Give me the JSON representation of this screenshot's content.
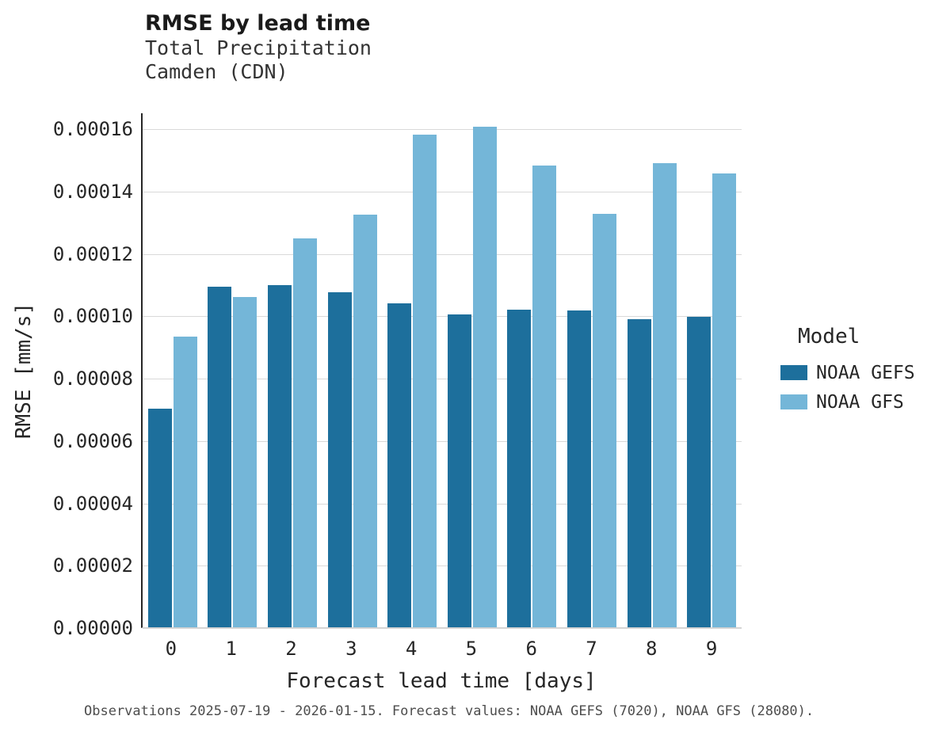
{
  "header": {
    "title": "RMSE by lead time",
    "subtitle1": "Total Precipitation",
    "subtitle2": "Camden (CDN)"
  },
  "chart_data": {
    "type": "bar",
    "title": "RMSE by lead time",
    "subtitle": [
      "Total Precipitation",
      "Camden (CDN)"
    ],
    "categories": [
      "0",
      "1",
      "2",
      "3",
      "4",
      "5",
      "6",
      "7",
      "8",
      "9"
    ],
    "series": [
      {
        "name": "NOAA GEFS",
        "color": "#1d6f9c",
        "values": [
          7.01e-05,
          0.0001093,
          0.0001097,
          0.0001074,
          0.0001039,
          0.0001004,
          0.0001019,
          0.0001016,
          9.88e-05,
          9.95e-05
        ]
      },
      {
        "name": "NOAA GFS",
        "color": "#74b6d8",
        "values": [
          9.32e-05,
          0.0001059,
          0.0001246,
          0.0001323,
          0.0001581,
          0.0001604,
          0.0001482,
          0.0001326,
          0.0001488,
          0.0001455
        ]
      }
    ],
    "xlabel": "Forecast lead time [days]",
    "ylabel": "RMSE [mm/s]",
    "ylim": [
      0,
      0.00016
    ],
    "ytick_step": 2e-05,
    "ytick_labels": [
      "0.00000",
      "0.00002",
      "0.00004",
      "0.00006",
      "0.00008",
      "0.00010",
      "0.00012",
      "0.00014",
      "0.00016"
    ],
    "legend_title": "Model",
    "legend_position": "right",
    "grid": true
  },
  "footer": {
    "caption": "Observations 2025-07-19 - 2026-01-15. Forecast values: NOAA GEFS (7020), NOAA GFS (28080)."
  }
}
